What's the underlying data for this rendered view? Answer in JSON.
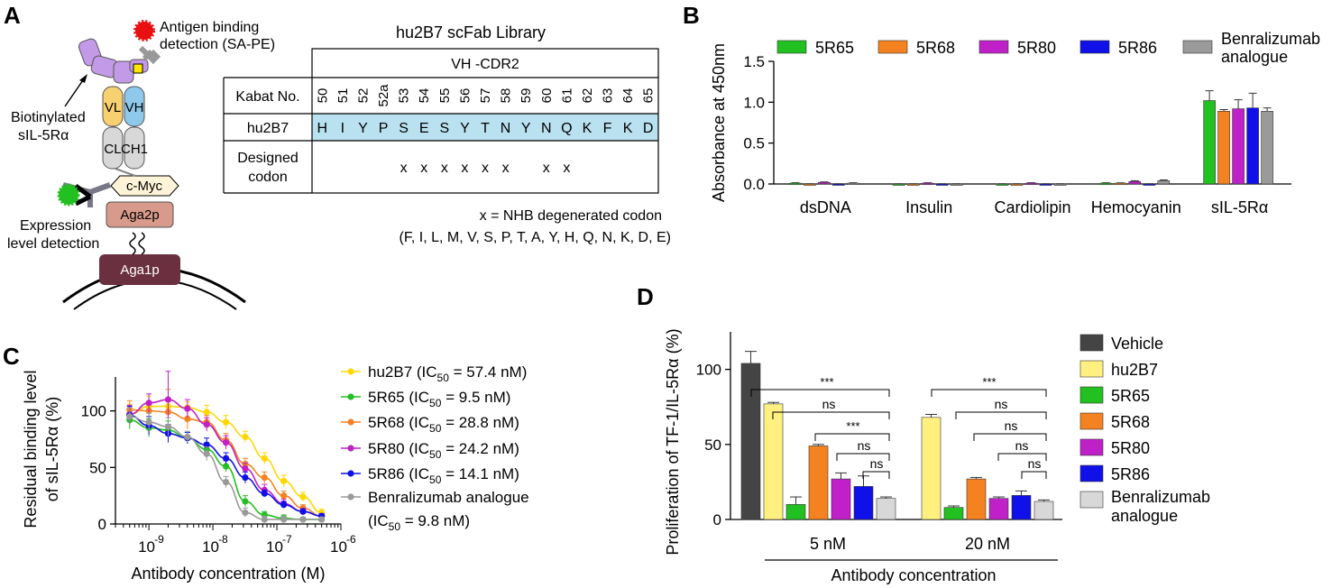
{
  "panel_labels": {
    "a": "A",
    "b": "B",
    "c": "C",
    "d": "D"
  },
  "panel_a": {
    "antigen_label": [
      "Antigen binding",
      "detection (SA-PE)"
    ],
    "biotin_label": [
      "Biotinylated",
      "sIL-5Rα"
    ],
    "expression_label": [
      "Expression",
      "level detection"
    ],
    "domains": {
      "vl": "VL",
      "vh": "VH",
      "cl": "CL",
      "ch1": "CH1",
      "cmyc": "c-Myc",
      "aga2p": "Aga2p",
      "aga1p": "Aga1p",
      "biotin": "B"
    },
    "table": {
      "title": "hu2B7 scFab Library",
      "region": "VH -CDR2",
      "row_labels": {
        "kabat": "Kabat No.",
        "seq": "hu2B7",
        "designed": [
          "Designed",
          "codon"
        ]
      },
      "kabat": [
        "50",
        "51",
        "52",
        "52a",
        "53",
        "54",
        "55",
        "56",
        "57",
        "58",
        "59",
        "60",
        "61",
        "62",
        "63",
        "64",
        "65"
      ],
      "residues": [
        "H",
        "I",
        "Y",
        "P",
        "S",
        "E",
        "S",
        "Y",
        "T",
        "N",
        "Y",
        "N",
        "Q",
        "K",
        "F",
        "K",
        "D"
      ],
      "designed": [
        "",
        "",
        "",
        "",
        "x",
        "x",
        "x",
        "x",
        "x",
        "x",
        "",
        "x",
        "x",
        "",
        "",
        "",
        ""
      ],
      "footnote1": "x = NHB degenerated codon",
      "footnote2": "(F, I, L, M, V, S, P, T, A, Y, H, Q, N, K, D, E)"
    }
  },
  "chart_data": [
    {
      "type": "bar",
      "panel": "B",
      "ylabel": "Absorbance at 450nm",
      "ylim": [
        0,
        1.5
      ],
      "yticks": [
        "0.0",
        "0.5",
        "1.0",
        "1.5"
      ],
      "categories": [
        "dsDNA",
        "Insulin",
        "Cardiolipin",
        "Hemocyanin",
        "sIL-5Rα"
      ],
      "series": [
        {
          "name": "5R65",
          "color": "#22c020",
          "values": [
            0.01,
            0.0,
            0.0,
            0.01,
            1.02
          ],
          "errors": [
            0.005,
            0.003,
            0.003,
            0.005,
            0.12
          ]
        },
        {
          "name": "5R68",
          "color": "#f58220",
          "values": [
            0.0,
            0.0,
            0.0,
            0.01,
            0.89
          ],
          "errors": [
            0.003,
            0.003,
            0.003,
            0.004,
            0.02
          ]
        },
        {
          "name": "5R80",
          "color": "#c020c8",
          "values": [
            0.02,
            0.01,
            0.01,
            0.03,
            0.92
          ],
          "errors": [
            0.005,
            0.005,
            0.005,
            0.01,
            0.11
          ]
        },
        {
          "name": "5R86",
          "color": "#1010e8",
          "values": [
            0.0,
            0.0,
            0.0,
            0.0,
            0.93
          ],
          "errors": [
            0.003,
            0.003,
            0.003,
            0.003,
            0.18
          ]
        },
        {
          "name": "Benralizumab analogue",
          "color": "#9a9a9a",
          "values": [
            0.01,
            0.0,
            0.0,
            0.04,
            0.89
          ],
          "errors": [
            0.005,
            0.003,
            0.003,
            0.01,
            0.04
          ]
        }
      ]
    },
    {
      "type": "line",
      "panel": "C",
      "xlabel": "Antibody concentration (M)",
      "ylabel": [
        "Residual binding level",
        "of  sIL-5Rα (%)"
      ],
      "xscale": "log",
      "xlim": [
        3e-10,
        1e-06
      ],
      "ylim": [
        0,
        130
      ],
      "xticks": [
        {
          "base": "10",
          "exp": "-9"
        },
        {
          "base": "10",
          "exp": "-8"
        },
        {
          "base": "10",
          "exp": "-7"
        },
        {
          "base": "10",
          "exp": "-6"
        }
      ],
      "yticks": [
        "0",
        "50",
        "100"
      ],
      "x": [
        5e-10,
        1e-09,
        2e-09,
        4e-09,
        8e-09,
        1.6e-08,
        3.2e-08,
        6.4e-08,
        1.28e-07,
        2.56e-07,
        5e-07
      ],
      "series": [
        {
          "name": "hu2B7",
          "ic50": "57.4 nM",
          "color": "#ffd700",
          "values": [
            97,
            104,
            104,
            103,
            99,
            90,
            77,
            58,
            38,
            24,
            10
          ]
        },
        {
          "name": "5R65",
          "ic50": "9.5 nM",
          "color": "#22c020",
          "values": [
            92,
            85,
            83,
            76,
            66,
            51,
            20,
            8,
            5,
            4,
            4
          ]
        },
        {
          "name": "5R68",
          "ic50": "28.8 nM",
          "color": "#f58220",
          "values": [
            101,
            100,
            99,
            93,
            90,
            74,
            53,
            41,
            25,
            14,
            7
          ]
        },
        {
          "name": "5R80",
          "ic50": "24.2 nM",
          "color": "#c020c8",
          "values": [
            97,
            107,
            110,
            102,
            88,
            72,
            49,
            30,
            18,
            11,
            7
          ]
        },
        {
          "name": "5R86",
          "ic50": "14.1 nM",
          "color": "#1010e8",
          "values": [
            96,
            87,
            80,
            76,
            70,
            58,
            41,
            27,
            17,
            11,
            7
          ]
        },
        {
          "name": "Benralizumab analogue",
          "ic50": "9.8 nM",
          "color": "#9a9a9a",
          "values": [
            95,
            90,
            86,
            77,
            62,
            37,
            10,
            4,
            4,
            4,
            4
          ]
        }
      ],
      "error_bars": [
        [
          9,
          9,
          6,
          5,
          6,
          6,
          5,
          5,
          5,
          4,
          3
        ],
        [
          8,
          8,
          8,
          5,
          6,
          5,
          5,
          3,
          3,
          2,
          2
        ],
        [
          8,
          8,
          20,
          9,
          6,
          6,
          5,
          5,
          4,
          3,
          2
        ],
        [
          8,
          8,
          25,
          8,
          6,
          6,
          5,
          5,
          4,
          3,
          2
        ],
        [
          8,
          8,
          8,
          5,
          6,
          5,
          5,
          3,
          3,
          2,
          2
        ],
        [
          8,
          8,
          8,
          5,
          6,
          5,
          4,
          3,
          3,
          2,
          2
        ]
      ]
    },
    {
      "type": "bar",
      "panel": "D",
      "ylabel": "Proliferation of TF-1/IL-5Rα (%)",
      "xlabel": "Antibody concentration",
      "ylim": [
        0,
        125
      ],
      "yticks": [
        "0",
        "50",
        "100"
      ],
      "categories": [
        "5 nM",
        "20 nM"
      ],
      "series": [
        {
          "name": "Vehicle",
          "color": "#444444",
          "values": [
            104,
            null
          ],
          "errors": [
            8,
            0
          ]
        },
        {
          "name": "hu2B7",
          "color": "#fff080",
          "values": [
            77,
            68
          ],
          "errors": [
            1,
            2
          ]
        },
        {
          "name": "5R65",
          "color": "#22c020",
          "values": [
            10,
            8
          ],
          "errors": [
            5,
            1
          ]
        },
        {
          "name": "5R68",
          "color": "#f58220",
          "values": [
            49,
            27
          ],
          "errors": [
            1,
            1
          ]
        },
        {
          "name": "5R80",
          "color": "#c020c8",
          "values": [
            27,
            14
          ],
          "errors": [
            4,
            1
          ]
        },
        {
          "name": "5R86",
          "color": "#1010e8",
          "values": [
            22,
            16
          ],
          "errors": [
            7,
            3
          ]
        },
        {
          "name": "Benralizumab analogue",
          "color": "#d8d8d8",
          "values": [
            14,
            12
          ],
          "errors": [
            1,
            1
          ]
        }
      ],
      "significance": {
        "5 nM": [
          "***",
          "ns",
          "***",
          "ns",
          "ns"
        ],
        "20 nM": [
          "***",
          "ns",
          "ns",
          "ns",
          "ns"
        ]
      }
    }
  ]
}
